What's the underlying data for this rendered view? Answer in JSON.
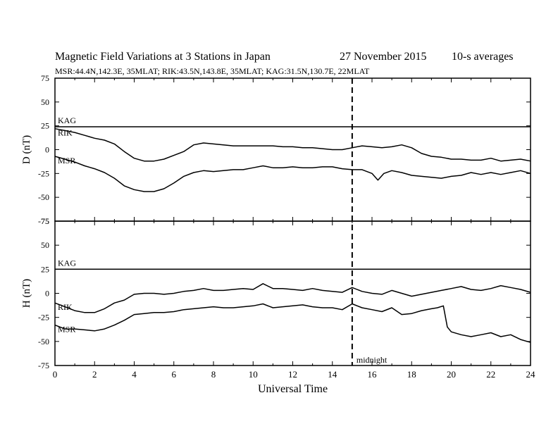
{
  "header": {
    "title": "Magnetic Field Variations at 3 Stations in Japan",
    "date": "27 November 2015",
    "averaging": "10-s averages",
    "stations": "MSR:44.4N,142.3E, 35MLAT;  RIK:43.5N,143.8E, 35MLAT;  KAG:31.5N,130.7E, 22MLAT"
  },
  "chart_data": [
    {
      "type": "line",
      "panel": "D",
      "ylabel": "D (nT)",
      "xlabel": "",
      "xlim": [
        0,
        24
      ],
      "ylim": [
        -75,
        75
      ],
      "yticks": [
        75,
        50,
        25,
        0,
        -25,
        -50,
        -75
      ],
      "series": [
        {
          "name": "KAG",
          "x": [
            0,
            24
          ],
          "values": [
            24,
            24
          ]
        },
        {
          "name": "RIK",
          "x": [
            0,
            0.5,
            1,
            1.5,
            2,
            2.5,
            3,
            3.5,
            4,
            4.5,
            5,
            5.5,
            6,
            6.5,
            7,
            7.5,
            8,
            8.5,
            9,
            9.5,
            10,
            10.5,
            11,
            11.5,
            12,
            12.5,
            13,
            13.5,
            14,
            14.5,
            15,
            15.5,
            16,
            16.5,
            17,
            17.5,
            18,
            18.5,
            19,
            19.5,
            20,
            20.5,
            21,
            21.5,
            22,
            22.5,
            23,
            23.5,
            24
          ],
          "values": [
            22,
            20,
            18,
            15,
            12,
            10,
            6,
            -2,
            -9,
            -12,
            -12,
            -10,
            -6,
            -2,
            5,
            7,
            6,
            5,
            4,
            4,
            4,
            4,
            4,
            3,
            3,
            2,
            2,
            1,
            0,
            0,
            2,
            4,
            3,
            2,
            3,
            5,
            2,
            -4,
            -7,
            -8,
            -10,
            -10,
            -11,
            -11,
            -9,
            -12,
            -11,
            -10,
            -12
          ]
        },
        {
          "name": "MSR",
          "x": [
            0,
            0.5,
            1,
            1.5,
            2,
            2.5,
            3,
            3.5,
            4,
            4.5,
            5,
            5.5,
            6,
            6.5,
            7,
            7.5,
            8,
            8.5,
            9,
            9.5,
            10,
            10.5,
            11,
            11.5,
            12,
            12.5,
            13,
            13.5,
            14,
            14.5,
            15,
            15.5,
            16,
            16.3,
            16.6,
            17,
            17.5,
            18,
            18.5,
            19,
            19.5,
            20,
            20.5,
            21,
            21.5,
            22,
            22.5,
            23,
            23.5,
            24
          ],
          "values": [
            -7,
            -10,
            -13,
            -17,
            -20,
            -24,
            -30,
            -38,
            -42,
            -44,
            -44,
            -41,
            -35,
            -28,
            -24,
            -22,
            -23,
            -22,
            -21,
            -21,
            -19,
            -17,
            -19,
            -19,
            -18,
            -19,
            -19,
            -18,
            -18,
            -20,
            -21,
            -21,
            -25,
            -32,
            -25,
            -22,
            -24,
            -27,
            -28,
            -29,
            -30,
            -28,
            -27,
            -24,
            -26,
            -24,
            -26,
            -24,
            -22,
            -25
          ]
        }
      ]
    },
    {
      "type": "line",
      "panel": "H",
      "ylabel": "H (nT)",
      "xlabel": "Universal Time",
      "xlim": [
        0,
        24
      ],
      "ylim": [
        -75,
        75
      ],
      "yticks": [
        75,
        50,
        25,
        0,
        -25,
        -50,
        -75
      ],
      "xticks": [
        0,
        2,
        4,
        6,
        8,
        10,
        12,
        14,
        16,
        18,
        20,
        22,
        24
      ],
      "series": [
        {
          "name": "KAG",
          "x": [
            0,
            24
          ],
          "values": [
            25,
            25
          ]
        },
        {
          "name": "RIK",
          "x": [
            0,
            0.5,
            1,
            1.5,
            2,
            2.5,
            3,
            3.5,
            4,
            4.5,
            5,
            5.5,
            6,
            6.5,
            7,
            7.5,
            8,
            8.5,
            9,
            9.5,
            10,
            10.5,
            11,
            11.5,
            12,
            12.5,
            13,
            13.5,
            14,
            14.5,
            15,
            15.5,
            16,
            16.5,
            17,
            17.5,
            18,
            18.5,
            19,
            19.5,
            20,
            20.5,
            21,
            21.5,
            22,
            22.5,
            23,
            23.5,
            24
          ],
          "values": [
            -10,
            -14,
            -18,
            -20,
            -20,
            -16,
            -10,
            -7,
            -1,
            0,
            0,
            -1,
            0,
            2,
            3,
            5,
            3,
            3,
            4,
            5,
            4,
            10,
            5,
            5,
            4,
            3,
            5,
            3,
            2,
            1,
            6,
            2,
            0,
            -1,
            3,
            0,
            -3,
            -1,
            1,
            3,
            5,
            7,
            4,
            3,
            5,
            8,
            6,
            4,
            1
          ]
        },
        {
          "name": "MSR",
          "x": [
            0,
            0.5,
            1,
            1.5,
            2,
            2.5,
            3,
            3.5,
            4,
            4.5,
            5,
            5.5,
            6,
            6.5,
            7,
            7.5,
            8,
            8.5,
            9,
            9.5,
            10,
            10.5,
            11,
            11.5,
            12,
            12.5,
            13,
            13.5,
            14,
            14.5,
            15,
            15.5,
            16,
            16.5,
            17,
            17.5,
            18,
            18.5,
            19,
            19.3,
            19.6,
            19.8,
            20,
            20.5,
            21,
            21.5,
            22,
            22.5,
            23,
            23.5,
            24
          ],
          "values": [
            -33,
            -37,
            -37,
            -38,
            -39,
            -37,
            -33,
            -28,
            -22,
            -21,
            -20,
            -20,
            -19,
            -17,
            -16,
            -15,
            -14,
            -15,
            -15,
            -14,
            -13,
            -11,
            -15,
            -14,
            -13,
            -12,
            -14,
            -15,
            -15,
            -17,
            -11,
            -15,
            -17,
            -19,
            -15,
            -22,
            -21,
            -18,
            -16,
            -15,
            -13,
            -35,
            -40,
            -43,
            -45,
            -43,
            -41,
            -45,
            -43,
            -48,
            -51
          ]
        }
      ],
      "annotations": [
        {
          "text": "midnight"
        }
      ]
    }
  ],
  "marker": {
    "x": 15
  }
}
